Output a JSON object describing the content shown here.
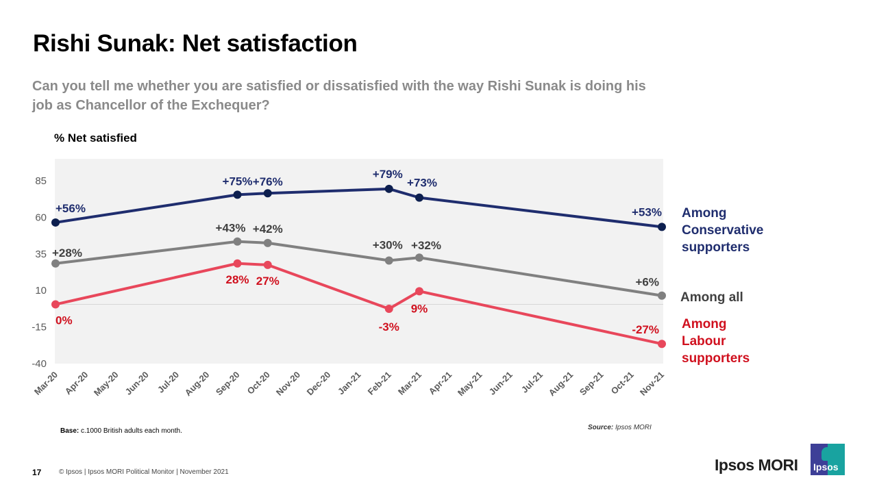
{
  "slide": {
    "title": "Rishi Sunak: Net satisfaction",
    "subtitle": "Can you tell me whether you are satisfied or dissatisfied with the way Rishi Sunak is doing his job as Chancellor of the Exchequer?",
    "base_label": "Base:",
    "base_text": " c.1000 British adults each month.",
    "source_label": "Source:",
    "source_text": " Ipsos MORI",
    "page_number": "17",
    "footer": "© Ipsos | Ipsos MORI Political Monitor | November 2021",
    "brand": "Ipsos MORI",
    "logo_text": "Ipsos"
  },
  "colors": {
    "conservative": "#1f2d6e",
    "conservative_marker": "#0d1f4f",
    "all_line": "#808080",
    "all_label": "#404040",
    "labour_line": "#e8475b",
    "labour_label": "#d0101e",
    "plot_bg": "#f2f2f2"
  },
  "chart_data": {
    "type": "line",
    "title": "Rishi Sunak: Net satisfaction",
    "xlabel": "",
    "ylabel": "% Net satisfied",
    "ylim": [
      -40,
      85
    ],
    "yticks": [
      85,
      60,
      35,
      10,
      -15,
      -40
    ],
    "grid": false,
    "legend_placement": "right",
    "categories": [
      "Mar-20",
      "Apr-20",
      "May-20",
      "Jun-20",
      "Jul-20",
      "Aug-20",
      "Sep-20",
      "Oct-20",
      "Nov-20",
      "Dec-20",
      "Jan-21",
      "Feb-21",
      "Mar-21",
      "Apr-21",
      "May-21",
      "Jun-21",
      "Jul-21",
      "Aug-21",
      "Sep-21",
      "Oct-21",
      "Nov-21"
    ],
    "series": [
      {
        "name": "Among Conservative supporters",
        "legend_lines": [
          "Among",
          "Conservative",
          "supporters"
        ],
        "points": [
          {
            "x": "Mar-20",
            "y": 56,
            "label": "+56%"
          },
          {
            "x": "Sep-20",
            "y": 75,
            "label": "+75%"
          },
          {
            "x": "Oct-20",
            "y": 76,
            "label": "+76%"
          },
          {
            "x": "Feb-21",
            "y": 79,
            "label": "+79%"
          },
          {
            "x": "Mar-21",
            "y": 73,
            "label": "+73%"
          },
          {
            "x": "Nov-21",
            "y": 53,
            "label": "+53%"
          }
        ]
      },
      {
        "name": "Among all",
        "legend_lines": [
          "Among all"
        ],
        "points": [
          {
            "x": "Mar-20",
            "y": 28,
            "label": "+28%"
          },
          {
            "x": "Sep-20",
            "y": 43,
            "label": "+43%"
          },
          {
            "x": "Oct-20",
            "y": 42,
            "label": "+42%"
          },
          {
            "x": "Feb-21",
            "y": 30,
            "label": "+30%"
          },
          {
            "x": "Mar-21",
            "y": 32,
            "label": "+32%"
          },
          {
            "x": "Nov-21",
            "y": 6,
            "label": "+6%"
          }
        ]
      },
      {
        "name": "Among Labour supporters",
        "legend_lines": [
          "Among",
          "Labour",
          "supporters"
        ],
        "points": [
          {
            "x": "Mar-20",
            "y": 0,
            "label": "0%"
          },
          {
            "x": "Sep-20",
            "y": 28,
            "label": "28%"
          },
          {
            "x": "Oct-20",
            "y": 27,
            "label": "27%"
          },
          {
            "x": "Feb-21",
            "y": -3,
            "label": "-3%"
          },
          {
            "x": "Mar-21",
            "y": 9,
            "label": "9%"
          },
          {
            "x": "Nov-21",
            "y": -27,
            "label": "-27%"
          }
        ]
      }
    ]
  }
}
